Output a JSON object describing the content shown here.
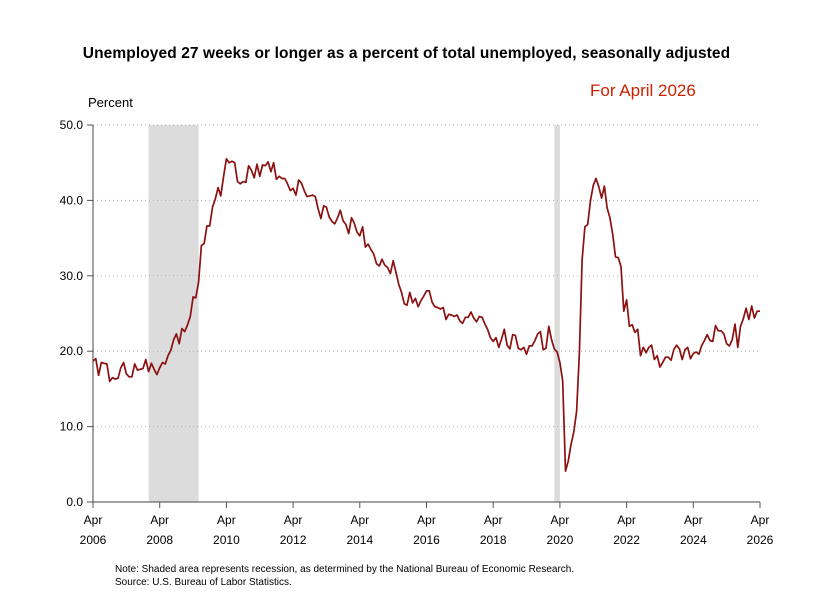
{
  "chart_data": {
    "type": "line",
    "title": "Unemployed 27 weeks or longer as a percent of total unemployed, seasonally adjusted",
    "subtitle": "For April 2026",
    "ylabel": "Percent",
    "xlabel": "",
    "ylim": [
      0,
      50
    ],
    "y_ticks": [
      "0.0",
      "10.0",
      "20.0",
      "30.0",
      "40.0",
      "50.0"
    ],
    "x_ticks": [
      {
        "month": "Apr",
        "year": "2006"
      },
      {
        "month": "Apr",
        "year": "2008"
      },
      {
        "month": "Apr",
        "year": "2010"
      },
      {
        "month": "Apr",
        "year": "2012"
      },
      {
        "month": "Apr",
        "year": "2014"
      },
      {
        "month": "Apr",
        "year": "2016"
      },
      {
        "month": "Apr",
        "year": "2018"
      },
      {
        "month": "Apr",
        "year": "2020"
      },
      {
        "month": "Apr",
        "year": "2022"
      },
      {
        "month": "Apr",
        "year": "2024"
      },
      {
        "month": "Apr",
        "year": "2026"
      }
    ],
    "x_range": [
      "2006-04",
      "2026-04"
    ],
    "grid": "horizontal dotted",
    "line_color": "#8b1010",
    "recession_color": "#dcdcdc",
    "recessions": [
      {
        "start": "2007-12",
        "end": "2009-06"
      },
      {
        "start": "2020-02",
        "end": "2020-04"
      }
    ],
    "series": [
      {
        "anchors": [
          [
            "2006-04",
            18.7
          ],
          [
            "2006-05",
            19.0
          ],
          [
            "2006-06",
            16.8
          ],
          [
            "2006-07",
            18.5
          ],
          [
            "2006-08",
            18.4
          ],
          [
            "2006-09",
            18.3
          ],
          [
            "2006-10",
            16.0
          ],
          [
            "2006-11",
            16.5
          ],
          [
            "2006-12",
            16.3
          ],
          [
            "2007-01",
            16.4
          ],
          [
            "2007-02",
            17.8
          ],
          [
            "2007-03",
            18.5
          ],
          [
            "2007-04",
            17.0
          ],
          [
            "2007-05",
            16.6
          ],
          [
            "2007-06",
            16.6
          ],
          [
            "2007-07",
            18.3
          ],
          [
            "2007-08",
            17.5
          ],
          [
            "2007-09",
            17.6
          ],
          [
            "2007-10",
            17.7
          ],
          [
            "2007-11",
            18.9
          ],
          [
            "2007-12",
            17.3
          ],
          [
            "2008-01",
            18.4
          ],
          [
            "2008-02",
            17.6
          ],
          [
            "2008-03",
            16.9
          ],
          [
            "2008-04",
            17.8
          ],
          [
            "2008-05",
            18.5
          ],
          [
            "2008-06",
            18.3
          ],
          [
            "2008-07",
            19.4
          ],
          [
            "2008-08",
            20.1
          ],
          [
            "2008-09",
            21.5
          ],
          [
            "2008-10",
            22.3
          ],
          [
            "2008-11",
            21.0
          ],
          [
            "2008-12",
            23.0
          ],
          [
            "2009-01",
            22.6
          ],
          [
            "2009-02",
            23.5
          ],
          [
            "2009-03",
            24.6
          ],
          [
            "2009-04",
            27.2
          ],
          [
            "2009-05",
            27.1
          ],
          [
            "2009-06",
            29.2
          ],
          [
            "2009-07",
            34.0
          ],
          [
            "2009-08",
            34.3
          ],
          [
            "2009-09",
            36.6
          ],
          [
            "2009-10",
            36.6
          ],
          [
            "2009-11",
            39.1
          ],
          [
            "2009-12",
            40.2
          ],
          [
            "2010-01",
            41.7
          ],
          [
            "2010-02",
            40.6
          ],
          [
            "2010-03",
            43.2
          ],
          [
            "2010-04",
            45.5
          ],
          [
            "2010-05",
            45.0
          ],
          [
            "2010-06",
            45.2
          ],
          [
            "2010-07",
            45.0
          ],
          [
            "2010-08",
            42.5
          ],
          [
            "2010-09",
            42.2
          ],
          [
            "2010-10",
            42.5
          ],
          [
            "2010-11",
            42.4
          ],
          [
            "2010-12",
            44.6
          ],
          [
            "2011-01",
            44.0
          ],
          [
            "2011-02",
            43.0
          ],
          [
            "2011-03",
            44.8
          ],
          [
            "2011-04",
            43.2
          ],
          [
            "2011-05",
            44.7
          ],
          [
            "2011-06",
            44.6
          ],
          [
            "2011-07",
            45.1
          ],
          [
            "2011-08",
            43.8
          ],
          [
            "2011-09",
            45.0
          ],
          [
            "2011-10",
            42.8
          ],
          [
            "2011-11",
            43.2
          ],
          [
            "2011-12",
            42.9
          ],
          [
            "2012-01",
            42.9
          ],
          [
            "2012-02",
            42.2
          ],
          [
            "2012-03",
            41.3
          ],
          [
            "2012-04",
            41.6
          ],
          [
            "2012-05",
            40.7
          ],
          [
            "2012-06",
            42.7
          ],
          [
            "2012-07",
            42.3
          ],
          [
            "2012-08",
            41.3
          ],
          [
            "2012-09",
            40.5
          ],
          [
            "2012-10",
            40.6
          ],
          [
            "2012-11",
            40.7
          ],
          [
            "2012-12",
            40.5
          ],
          [
            "2013-01",
            38.9
          ],
          [
            "2013-02",
            37.6
          ],
          [
            "2013-03",
            39.3
          ],
          [
            "2013-04",
            39.1
          ],
          [
            "2013-05",
            37.8
          ],
          [
            "2013-06",
            37.2
          ],
          [
            "2013-07",
            36.9
          ],
          [
            "2013-08",
            37.7
          ],
          [
            "2013-09",
            38.7
          ],
          [
            "2013-10",
            37.3
          ],
          [
            "2013-11",
            36.8
          ],
          [
            "2013-12",
            35.6
          ],
          [
            "2014-01",
            37.7
          ],
          [
            "2014-02",
            37.0
          ],
          [
            "2014-03",
            35.8
          ],
          [
            "2014-04",
            35.3
          ],
          [
            "2014-05",
            36.5
          ],
          [
            "2014-06",
            33.8
          ],
          [
            "2014-07",
            34.2
          ],
          [
            "2014-08",
            33.5
          ],
          [
            "2014-09",
            32.9
          ],
          [
            "2014-10",
            31.6
          ],
          [
            "2014-11",
            31.3
          ],
          [
            "2014-12",
            32.2
          ],
          [
            "2015-01",
            31.4
          ],
          [
            "2015-02",
            31.1
          ],
          [
            "2015-03",
            30.3
          ],
          [
            "2015-04",
            32.0
          ],
          [
            "2015-05",
            30.5
          ],
          [
            "2015-06",
            28.9
          ],
          [
            "2015-07",
            27.8
          ],
          [
            "2015-08",
            26.3
          ],
          [
            "2015-09",
            26.1
          ],
          [
            "2015-10",
            27.8
          ],
          [
            "2015-11",
            26.4
          ],
          [
            "2015-12",
            27.0
          ],
          [
            "2016-01",
            25.9
          ],
          [
            "2016-02",
            26.7
          ],
          [
            "2016-03",
            27.3
          ],
          [
            "2016-04",
            28.0
          ],
          [
            "2016-05",
            28.0
          ],
          [
            "2016-06",
            26.5
          ],
          [
            "2016-07",
            25.9
          ],
          [
            "2016-08",
            25.8
          ],
          [
            "2016-09",
            25.6
          ],
          [
            "2016-10",
            25.8
          ],
          [
            "2016-11",
            24.2
          ],
          [
            "2016-12",
            24.9
          ],
          [
            "2017-01",
            24.8
          ],
          [
            "2017-02",
            24.6
          ],
          [
            "2017-03",
            24.8
          ],
          [
            "2017-04",
            24.0
          ],
          [
            "2017-05",
            23.7
          ],
          [
            "2017-06",
            24.5
          ],
          [
            "2017-07",
            24.5
          ],
          [
            "2017-08",
            25.2
          ],
          [
            "2017-09",
            24.4
          ],
          [
            "2017-10",
            23.9
          ],
          [
            "2017-11",
            24.6
          ],
          [
            "2017-12",
            24.5
          ],
          [
            "2018-01",
            23.6
          ],
          [
            "2018-02",
            22.9
          ],
          [
            "2018-03",
            21.8
          ],
          [
            "2018-04",
            21.3
          ],
          [
            "2018-05",
            21.8
          ],
          [
            "2018-06",
            20.5
          ],
          [
            "2018-07",
            21.6
          ],
          [
            "2018-08",
            22.9
          ],
          [
            "2018-09",
            20.8
          ],
          [
            "2018-10",
            20.3
          ],
          [
            "2018-11",
            22.2
          ],
          [
            "2018-12",
            22.1
          ],
          [
            "2019-01",
            20.4
          ],
          [
            "2019-02",
            20.2
          ],
          [
            "2019-03",
            20.5
          ],
          [
            "2019-04",
            19.6
          ],
          [
            "2019-05",
            20.7
          ],
          [
            "2019-06",
            20.7
          ],
          [
            "2019-07",
            21.4
          ],
          [
            "2019-08",
            22.3
          ],
          [
            "2019-09",
            22.6
          ],
          [
            "2019-10",
            20.2
          ],
          [
            "2019-11",
            20.4
          ],
          [
            "2019-12",
            23.3
          ],
          [
            "2020-01",
            21.5
          ],
          [
            "2020-02",
            20.3
          ],
          [
            "2020-03",
            19.9
          ],
          [
            "2020-04",
            18.5
          ],
          [
            "2020-05",
            16.0
          ],
          [
            "2020-06",
            4.1
          ],
          [
            "2020-07",
            5.4
          ],
          [
            "2020-08",
            7.6
          ],
          [
            "2020-09",
            9.3
          ],
          [
            "2020-10",
            12.0
          ],
          [
            "2020-11",
            19.8
          ],
          [
            "2020-12",
            32.1
          ],
          [
            "2021-01",
            36.5
          ],
          [
            "2021-02",
            36.8
          ],
          [
            "2021-03",
            40.0
          ],
          [
            "2021-04",
            42.0
          ],
          [
            "2021-05",
            42.9
          ],
          [
            "2021-06",
            41.8
          ],
          [
            "2021-07",
            40.3
          ],
          [
            "2021-08",
            41.9
          ],
          [
            "2021-09",
            39.0
          ],
          [
            "2021-10",
            37.7
          ],
          [
            "2021-11",
            35.5
          ],
          [
            "2021-12",
            32.5
          ],
          [
            "2022-01",
            32.4
          ],
          [
            "2022-02",
            31.2
          ],
          [
            "2022-03",
            25.3
          ],
          [
            "2022-04",
            26.8
          ],
          [
            "2022-05",
            23.3
          ],
          [
            "2022-06",
            23.5
          ],
          [
            "2022-07",
            22.5
          ],
          [
            "2022-08",
            22.9
          ],
          [
            "2022-09",
            19.4
          ],
          [
            "2022-10",
            20.5
          ],
          [
            "2022-11",
            19.8
          ],
          [
            "2022-12",
            20.5
          ],
          [
            "2023-01",
            20.8
          ],
          [
            "2023-02",
            18.9
          ],
          [
            "2023-03",
            19.4
          ],
          [
            "2023-04",
            17.9
          ],
          [
            "2023-05",
            18.5
          ],
          [
            "2023-06",
            19.2
          ],
          [
            "2023-07",
            19.2
          ],
          [
            "2023-08",
            18.8
          ],
          [
            "2023-09",
            20.2
          ],
          [
            "2023-10",
            20.8
          ],
          [
            "2023-11",
            20.3
          ],
          [
            "2023-12",
            18.9
          ],
          [
            "2024-01",
            20.2
          ],
          [
            "2024-02",
            20.5
          ],
          [
            "2024-03",
            19.0
          ],
          [
            "2024-04",
            19.7
          ],
          [
            "2024-05",
            19.9
          ],
          [
            "2024-06",
            19.6
          ],
          [
            "2024-07",
            20.7
          ],
          [
            "2024-08",
            21.4
          ],
          [
            "2024-09",
            22.2
          ],
          [
            "2024-10",
            21.4
          ],
          [
            "2024-11",
            21.3
          ],
          [
            "2024-12",
            23.4
          ],
          [
            "2025-01",
            22.7
          ],
          [
            "2025-02",
            22.7
          ],
          [
            "2025-03",
            22.3
          ],
          [
            "2025-04",
            21.0
          ],
          [
            "2025-05",
            20.7
          ],
          [
            "2025-06",
            21.5
          ],
          [
            "2025-07",
            23.6
          ],
          [
            "2025-08",
            20.5
          ],
          [
            "2025-09",
            23.3
          ],
          [
            "2025-10",
            24.3
          ],
          [
            "2025-11",
            25.7
          ],
          [
            "2025-12",
            24.2
          ],
          [
            "2026-01",
            26.0
          ],
          [
            "2026-02",
            24.4
          ],
          [
            "2026-03",
            25.3
          ],
          [
            "2026-04",
            25.3
          ]
        ]
      }
    ]
  },
  "notes": {
    "line1": "Note: Shaded area represents recession, as determined by the National Bureau of Economic Research.",
    "line2": "Source: U.S. Bureau of Labor Statistics."
  }
}
